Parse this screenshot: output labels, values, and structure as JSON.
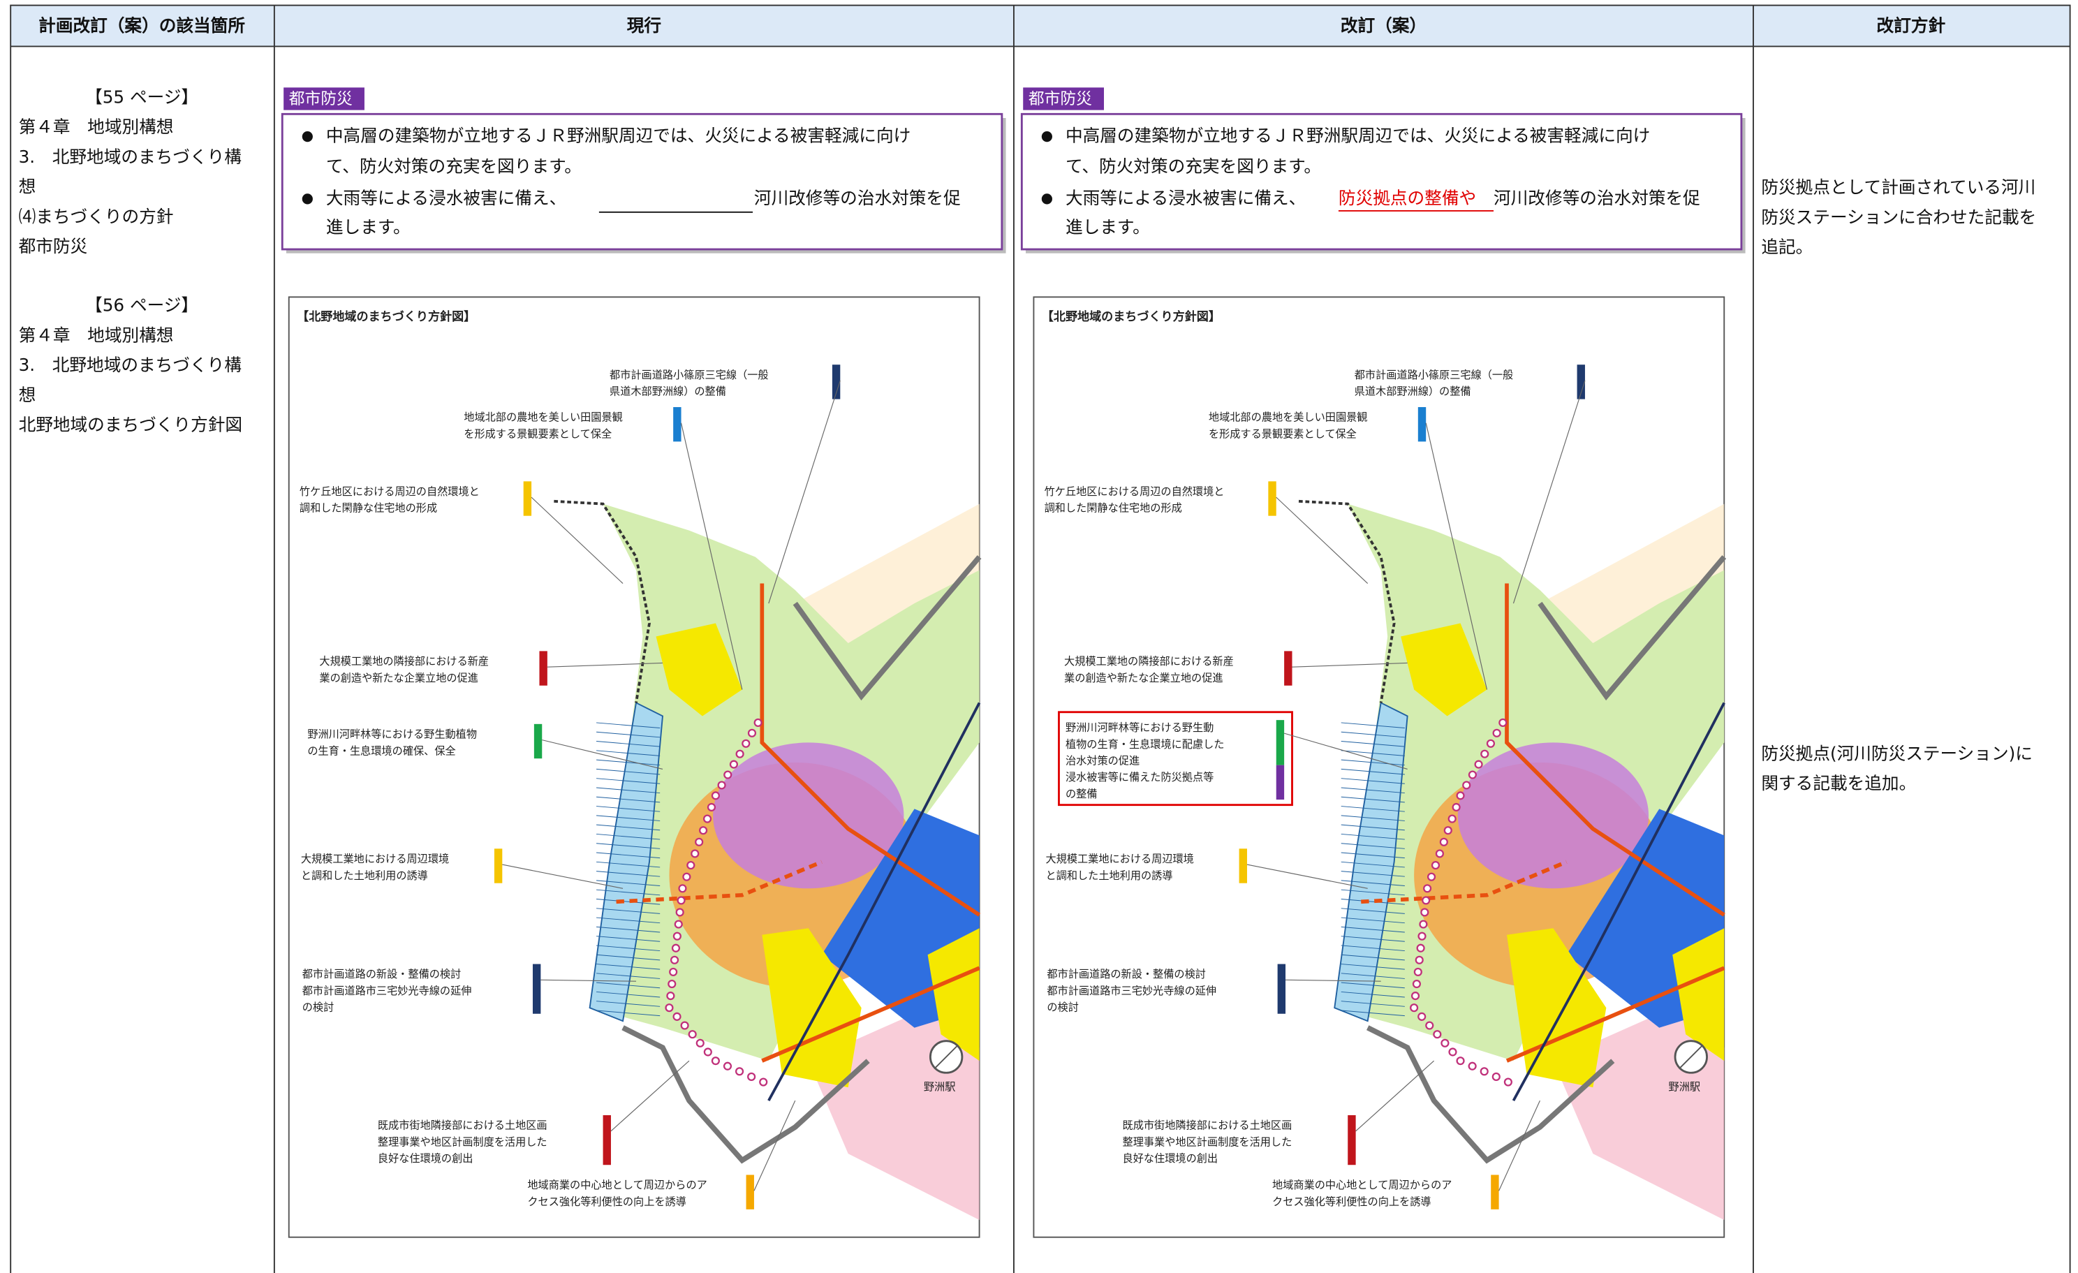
{
  "header": [
    "計画改訂（案）の該当箇所",
    "現行",
    "改訂（案）",
    "改訂方針"
  ],
  "location": {
    "blocks": [
      [
        "【55 ページ】",
        "第４章　地域別構想",
        "3.　北野地域のまちづくり構",
        "想",
        "⑷まちづくりの方針",
        "都市防災"
      ],
      [
        "【56 ページ】",
        "第４章　地域別構想",
        "3.　北野地域のまちづくり構",
        "想",
        "北野地域のまちづくり方針図"
      ]
    ]
  },
  "current": {
    "tag": "都市防災",
    "bullet1": [
      "中高層の建築物が立地するＪＲ野洲駅周辺では、火災による被害軽減に向け",
      "て、防火対策の充実を図ります。"
    ],
    "bullet2": [
      "大雨等による浸水被害に備え、",
      "河川改修等の治水対策を促",
      "進します。"
    ],
    "map": {
      "title": "【北野地域のまちづくり方針図】",
      "station": "野洲駅",
      "callouts": [
        {
          "lines": [
            "都市計画道路小篠原三宅線（一般",
            "県道木部野洲線）の整備"
          ],
          "color": "#1f3a6e"
        },
        {
          "lines": [
            "地域北部の農地を美しい田園景観",
            "を形成する景観要素として保全"
          ],
          "color": "#1a7fd0"
        },
        {
          "lines": [
            "竹ケ丘地区における周辺の自然環境と",
            "調和した閑静な住宅地の形成"
          ],
          "color": "#f5c400"
        },
        {
          "lines": [
            "大規模工業地の隣接部における新産",
            "業の創造や新たな企業立地の促進"
          ],
          "color": "#c0151c"
        },
        {
          "lines": [
            "野洲川河畔林等における野生動植物",
            "の生育・生息環境の確保、保全"
          ],
          "color": "#1aa84a"
        },
        {
          "lines": [
            "大規模工業地における周辺環境",
            "と調和した土地利用の誘導"
          ],
          "color": "#f5c400"
        },
        {
          "lines": [
            "都市計画道路の新設・整備の検討",
            "都市計画道路市三宅妙光寺線の延伸",
            "の検討"
          ],
          "color": "#1f3a6e"
        },
        {
          "lines": [
            "既成市街地隣接部における土地区画",
            "整理事業や地区計画制度を活用した",
            "良好な住環境の創出"
          ],
          "color": "#c0151c"
        },
        {
          "lines": [
            "地域商業の中心地として周辺からのア",
            "クセス強化等利便性の向上を誘導"
          ],
          "color": "#f5a800"
        }
      ]
    }
  },
  "revised": {
    "tag": "都市防災",
    "bullet1": [
      "中高層の建築物が立地するＪＲ野洲駅周辺では、火災による被害軽減に向け",
      "て、防火対策の充実を図ります。"
    ],
    "bullet2": [
      "大雨等による浸水被害に備え、",
      "防災拠点の整備や",
      "河川改修等の治水対策を促",
      "進します。"
    ],
    "map": {
      "title": "【北野地域のまちづくり方針図】",
      "station": "野洲駅",
      "callouts": [
        {
          "lines": [
            "都市計画道路小篠原三宅線（一般",
            "県道木部野洲線）の整備"
          ],
          "color": "#1f3a6e"
        },
        {
          "lines": [
            "地域北部の農地を美しい田園景観",
            "を形成する景観要素として保全"
          ],
          "color": "#1a7fd0"
        },
        {
          "lines": [
            "竹ケ丘地区における周辺の自然環境と",
            "調和した閑静な住宅地の形成"
          ],
          "color": "#f5c400"
        },
        {
          "lines": [
            "大規模工業地の隣接部における新産",
            "業の創造や新たな企業立地の促進"
          ],
          "color": "#c0151c"
        },
        {
          "lines": [
            "野洲川河畔林等における野生動",
            "植物の生育・生息環境に配慮した",
            "治水対策の促進",
            "浸水被害等に備えた防災拠点等",
            "の整備"
          ],
          "color": "#1aa84a"
        },
        {
          "lines": [
            "大規模工業地における周辺環境",
            "と調和した土地利用の誘導"
          ],
          "color": "#f5c400"
        },
        {
          "lines": [
            "都市計画道路の新設・整備の検討",
            "都市計画道路市三宅妙光寺線の延伸",
            "の検討"
          ],
          "color": "#1f3a6e"
        },
        {
          "lines": [
            "既成市街地隣接部における土地区画",
            "整理事業や地区計画制度を活用した",
            "良好な住環境の創出"
          ],
          "color": "#c0151c"
        },
        {
          "lines": [
            "地域商業の中心地として周辺からのア",
            "クセス強化等利便性の向上を誘導"
          ],
          "color": "#f5a800"
        }
      ]
    }
  },
  "policy": {
    "blocks": [
      [
        "防災拠点として計画されている河川",
        "防災ステーションに合わせた記載を",
        "追記。"
      ],
      [
        "防災拠点(河川防災ステーション)に",
        "関する記載を追加。"
      ]
    ]
  }
}
